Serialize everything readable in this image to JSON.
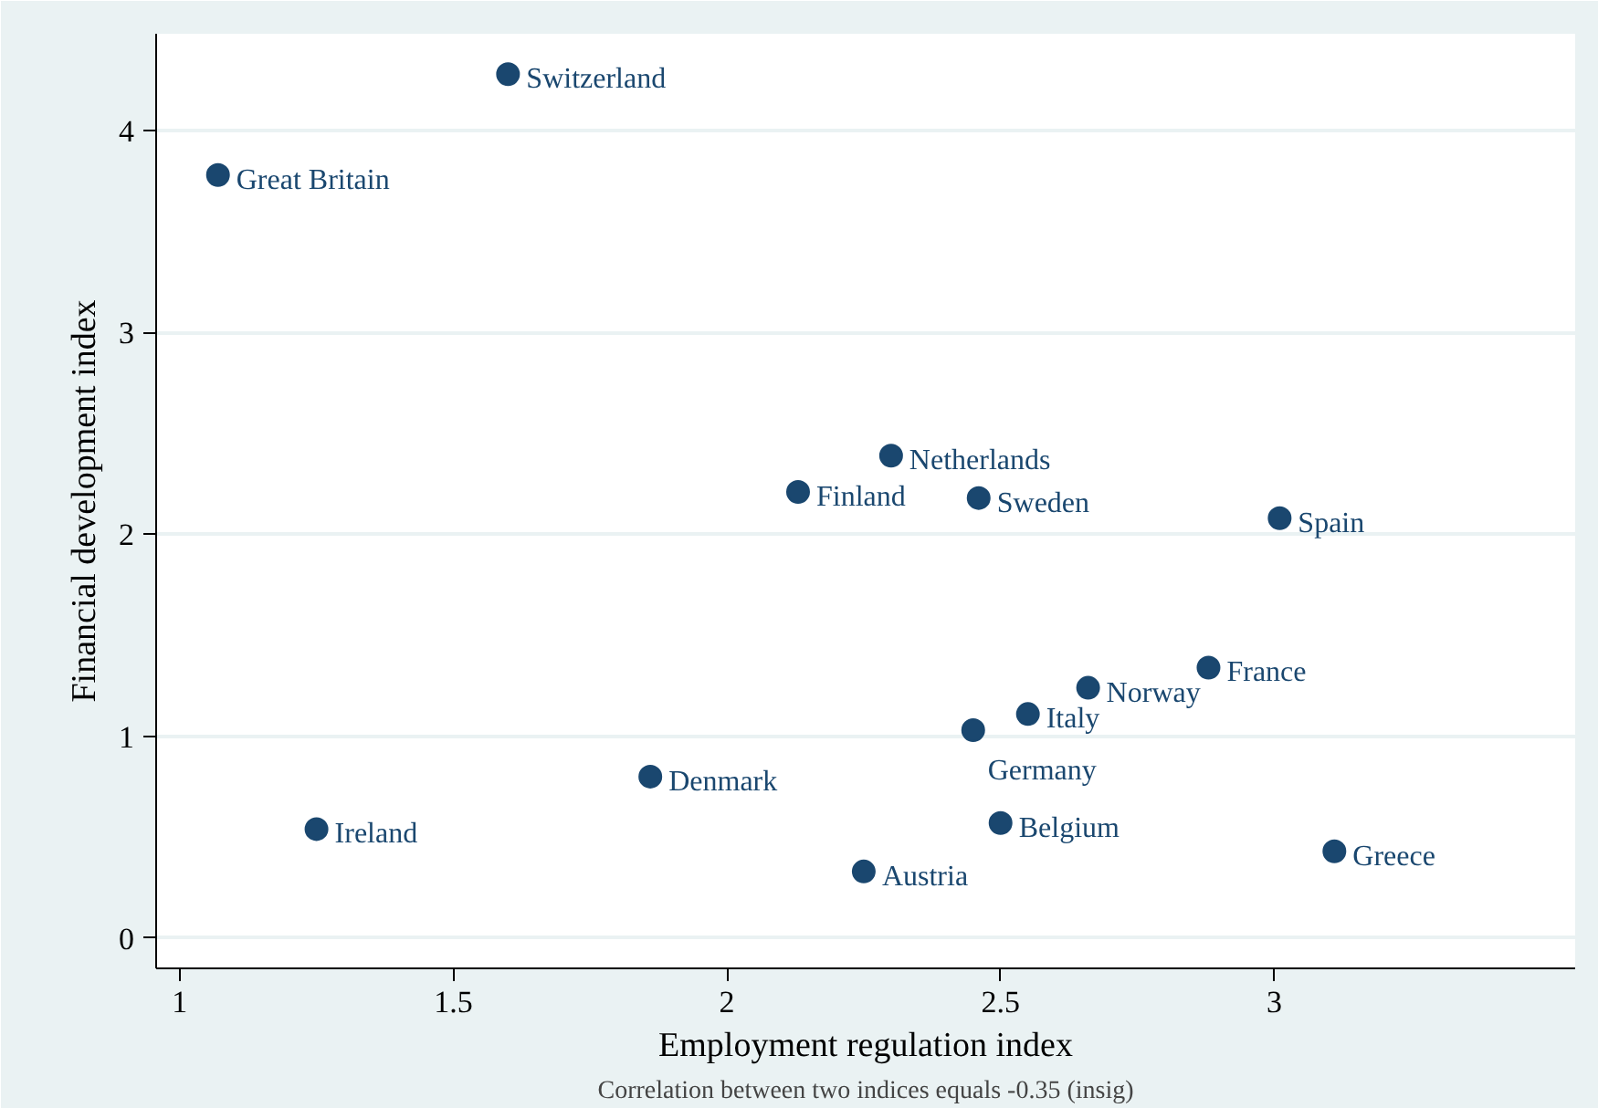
{
  "chart_data": {
    "type": "scatter",
    "xlabel": "Employment regulation index",
    "ylabel": "Financial development index",
    "x": [
      1.6,
      1.07,
      2.3,
      2.13,
      2.46,
      3.01,
      2.88,
      2.66,
      2.55,
      2.45,
      1.86,
      1.25,
      2.5,
      2.25,
      3.11
    ],
    "series": [
      {
        "color": "#1a476f",
        "values": [
          4.28,
          3.78,
          2.39,
          2.21,
          2.18,
          2.08,
          1.34,
          1.24,
          1.11,
          1.03,
          0.8,
          0.54,
          0.57,
          0.33,
          0.43
        ]
      }
    ],
    "xlim": [
      0.957,
      3.55
    ],
    "ylim": [
      -0.15,
      4.48
    ],
    "xticks": [
      1,
      1.5,
      2,
      2.5,
      3
    ],
    "yticks": [
      0,
      1,
      2,
      3,
      4
    ],
    "grid": "y",
    "marker": "circle",
    "annotations": [
      {
        "text": "Switzerland",
        "x": 1.6,
        "y": 4.28
      },
      {
        "text": "Great Britain",
        "x": 1.07,
        "y": 3.78
      },
      {
        "text": "Netherlands",
        "x": 2.3,
        "y": 2.39
      },
      {
        "text": "Finland",
        "x": 2.13,
        "y": 2.21
      },
      {
        "text": "Sweden",
        "x": 2.46,
        "y": 2.18
      },
      {
        "text": "Spain",
        "x": 3.01,
        "y": 2.08
      },
      {
        "text": "France",
        "x": 2.88,
        "y": 1.34
      },
      {
        "text": "Norway",
        "x": 2.66,
        "y": 1.24
      },
      {
        "text": "Italy",
        "x": 2.55,
        "y": 1.11
      },
      {
        "text": "Germany",
        "x": 2.45,
        "y": 1.03
      },
      {
        "text": "Denmark",
        "x": 1.86,
        "y": 0.8
      },
      {
        "text": "Ireland",
        "x": 1.25,
        "y": 0.54
      },
      {
        "text": "Belgium",
        "x": 2.5,
        "y": 0.57
      },
      {
        "text": "Austria",
        "x": 2.25,
        "y": 0.33
      },
      {
        "text": "Greece",
        "x": 3.11,
        "y": 0.43
      },
      "Correlation between two indices equals -0.35 (insig)"
    ]
  }
}
